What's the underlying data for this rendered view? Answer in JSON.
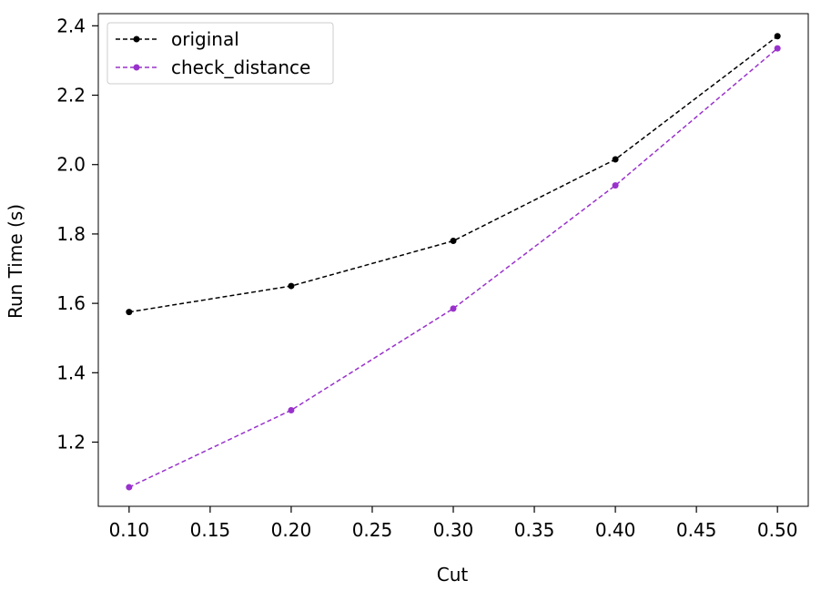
{
  "chart_data": {
    "type": "line",
    "title": "",
    "xlabel": "Cut",
    "ylabel": "Run Time (s)",
    "xlim": [
      0.081,
      0.519
    ],
    "ylim": [
      1.015,
      2.435
    ],
    "xticks": [
      0.1,
      0.15,
      0.2,
      0.25,
      0.3,
      0.35,
      0.4,
      0.45,
      0.5
    ],
    "xtick_labels": [
      "0.10",
      "0.15",
      "0.20",
      "0.25",
      "0.30",
      "0.35",
      "0.40",
      "0.45",
      "0.50"
    ],
    "yticks": [
      1.2,
      1.4,
      1.6,
      1.8,
      2.0,
      2.2,
      2.4
    ],
    "ytick_labels": [
      "1.2",
      "1.4",
      "1.6",
      "1.8",
      "2.0",
      "2.2",
      "2.4"
    ],
    "grid": false,
    "legend_position": "upper-left",
    "x": [
      0.1,
      0.2,
      0.3,
      0.4,
      0.5
    ],
    "series": [
      {
        "name": "original",
        "color": "#000000",
        "line_style": "dashed",
        "marker": "circle",
        "values": [
          1.575,
          1.65,
          1.78,
          2.015,
          2.37
        ]
      },
      {
        "name": "check_distance",
        "color": "#9932CC",
        "line_style": "dashed",
        "marker": "circle",
        "values": [
          1.07,
          1.292,
          1.585,
          1.94,
          2.335
        ]
      }
    ]
  }
}
